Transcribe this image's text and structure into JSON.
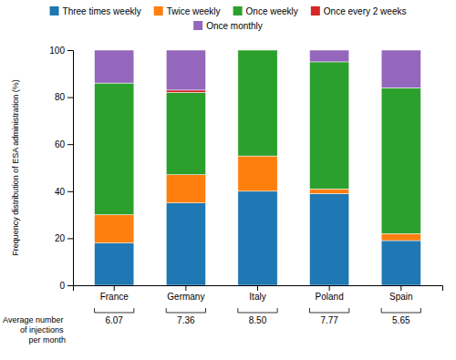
{
  "chart_data": {
    "type": "bar",
    "stacked": true,
    "categories": [
      "France",
      "Germany",
      "Italy",
      "Poland",
      "Spain"
    ],
    "series": [
      {
        "name": "Three times weekly",
        "values": [
          18,
          35,
          40,
          39,
          19
        ]
      },
      {
        "name": "Twice weekly",
        "values": [
          12,
          12,
          15,
          2,
          3
        ]
      },
      {
        "name": "Once weekly",
        "values": [
          56,
          35,
          45,
          54,
          62
        ]
      },
      {
        "name": "Once every 2 weeks",
        "values": [
          0,
          1,
          0,
          0,
          0
        ]
      },
      {
        "name": "Once monthly",
        "values": [
          14,
          17,
          0,
          5,
          16
        ]
      }
    ],
    "y_label": "Frequency distribution of ESA administration (%)",
    "ylim": [
      0,
      100
    ],
    "yticks": [
      0,
      20,
      40,
      60,
      80,
      100
    ],
    "grid": false,
    "legend": "top",
    "annotations": [
      {
        "text": "Average number\nof injections\nper month",
        "values": [
          6.07,
          7.36,
          8.5,
          7.77,
          5.65
        ],
        "value_labels": [
          "6.07",
          "7.36",
          "8.50",
          "7.77",
          "5.65"
        ]
      }
    ]
  }
}
